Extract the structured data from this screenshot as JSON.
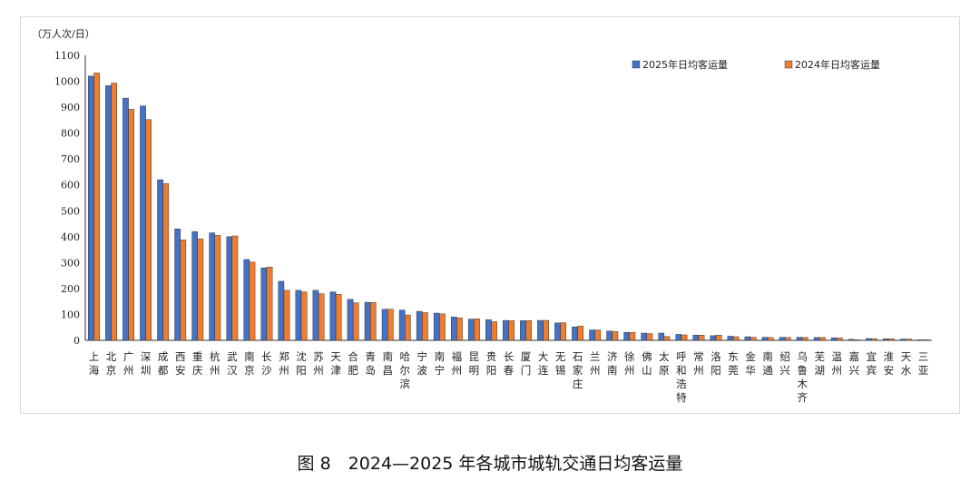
{
  "caption": "图 8　2024—2025 年各城市城轨交通日均客运量",
  "chart_data": {
    "type": "bar",
    "title": "",
    "ylabel": "（万人次/日）",
    "xlabel": "",
    "ylim": [
      0,
      1100
    ],
    "yticks": [
      0,
      100,
      200,
      300,
      400,
      500,
      600,
      700,
      800,
      900,
      1000,
      1100
    ],
    "grid": false,
    "legend_position": "top-right",
    "colors": {
      "2025": "#4472c4",
      "2024": "#ed7d31",
      "bar_edge": "#1f1f1f"
    },
    "categories": [
      "上海",
      "北京",
      "广州",
      "深圳",
      "成都",
      "西安",
      "重庆",
      "杭州",
      "武汉",
      "南京",
      "长沙",
      "郑州",
      "沈阳",
      "苏州",
      "天津",
      "合肥",
      "青岛",
      "南昌",
      "哈尔滨",
      "宁波",
      "南宁",
      "福州",
      "昆明",
      "贵阳",
      "长春",
      "厦门",
      "大连",
      "无锡",
      "石家庄",
      "兰州",
      "济南",
      "徐州",
      "佛山",
      "太原",
      "呼和浩特",
      "常州",
      "洛阳",
      "东莞",
      "金华",
      "南通",
      "绍兴",
      "乌鲁木齐",
      "芜湖",
      "温州",
      "嘉兴",
      "宜宾",
      "淮安",
      "天水",
      "三亚"
    ],
    "series": [
      {
        "name": "2025年日均客运量",
        "values": [
          1020,
          983,
          935,
          905,
          620,
          430,
          420,
          415,
          400,
          312,
          280,
          228,
          193,
          193,
          187,
          158,
          147,
          120,
          117,
          112,
          105,
          90,
          82,
          80,
          77,
          76,
          77,
          67,
          52,
          40,
          36,
          31,
          28,
          28,
          23,
          20,
          18,
          16,
          14,
          12,
          12,
          12,
          11,
          10,
          4,
          7,
          6,
          5,
          2
        ]
      },
      {
        "name": "2024年日均客运量",
        "values": [
          1032,
          993,
          892,
          852,
          605,
          388,
          392,
          405,
          403,
          302,
          283,
          193,
          187,
          180,
          178,
          145,
          146,
          120,
          98,
          107,
          102,
          87,
          83,
          72,
          76,
          76,
          77,
          68,
          55,
          40,
          34,
          31,
          26,
          15,
          21,
          20,
          20,
          14,
          12,
          11,
          11,
          11,
          11,
          9,
          2,
          6,
          6,
          5,
          2
        ]
      }
    ]
  }
}
